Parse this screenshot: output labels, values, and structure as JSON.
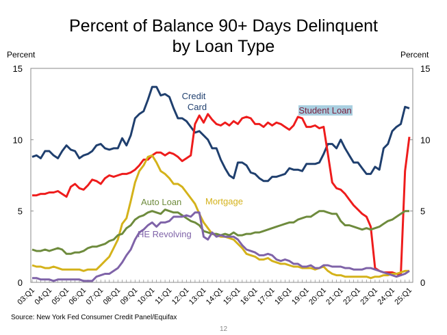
{
  "chart_data": {
    "type": "line",
    "title": "Percent of Balance 90+ Days Delinquent by Loan Type",
    "title_lines": [
      "Percent of Balance 90+ Days Delinquent",
      "by Loan Type"
    ],
    "ylabel_left": "Percent",
    "ylabel_right": "Percent",
    "ylim": [
      0,
      15
    ],
    "yticks": [
      0,
      5,
      10,
      15
    ],
    "x_start": "03:Q1",
    "x_end": "25:Q1",
    "x_frequency": "quarterly",
    "xtick_labels": [
      "03:Q1",
      "04:Q1",
      "05:Q1",
      "06:Q1",
      "07:Q1",
      "08:Q1",
      "09:Q1",
      "10:Q1",
      "11:Q1",
      "12:Q1",
      "13:Q1",
      "14:Q1",
      "15:Q1",
      "16:Q1",
      "17:Q1",
      "18:Q1",
      "19:Q1",
      "20:Q1",
      "21:Q1",
      "22:Q1",
      "23:Q1",
      "24:Q1",
      "25:Q1"
    ],
    "grid": false,
    "series": [
      {
        "name": "Credit Card",
        "label_lines": [
          "Credit",
          "Card"
        ],
        "color": "#1f3f6e",
        "values": [
          8.8,
          8.9,
          8.7,
          9.2,
          9.2,
          8.9,
          8.7,
          9.2,
          9.6,
          9.3,
          9.2,
          8.7,
          8.9,
          9.0,
          9.2,
          9.6,
          9.7,
          9.4,
          9.3,
          9.4,
          9.4,
          10.1,
          9.6,
          10.3,
          11.5,
          11.8,
          12.0,
          12.8,
          13.7,
          13.7,
          13.1,
          13.2,
          13.0,
          12.2,
          11.5,
          11.5,
          11.3,
          10.9,
          10.5,
          10.6,
          10.3,
          10.0,
          9.4,
          9.4,
          8.6,
          8.0,
          7.5,
          7.3,
          8.4,
          8.4,
          8.2,
          7.7,
          7.6,
          7.3,
          7.1,
          7.1,
          7.4,
          7.4,
          7.5,
          7.6,
          8.0,
          7.9,
          7.9,
          7.8,
          8.3,
          8.3,
          8.3,
          8.4,
          9.0,
          9.7,
          9.7,
          9.4,
          10.0,
          9.4,
          8.9,
          8.4,
          8.4,
          8.0,
          7.6,
          7.6,
          8.1,
          7.9,
          9.4,
          9.7,
          10.6,
          10.9,
          11.1,
          12.3,
          12.2
        ]
      },
      {
        "name": "Student Loan",
        "label_lines": [
          "Student Loan"
        ],
        "color": "#ee1c1c",
        "values": [
          6.1,
          6.1,
          6.2,
          6.2,
          6.3,
          6.3,
          6.4,
          6.2,
          6.0,
          6.7,
          6.9,
          6.6,
          6.5,
          6.8,
          7.2,
          7.1,
          6.9,
          7.3,
          7.5,
          7.4,
          7.5,
          7.6,
          7.6,
          7.7,
          7.9,
          8.2,
          8.6,
          8.6,
          8.9,
          9.1,
          9.1,
          8.9,
          9.1,
          9.0,
          8.8,
          8.5,
          8.7,
          8.9,
          11.1,
          11.7,
          11.2,
          11.8,
          11.4,
          11.1,
          11.0,
          11.2,
          11.0,
          11.3,
          11.1,
          11.5,
          11.6,
          11.5,
          11.1,
          11.1,
          10.9,
          11.2,
          11.0,
          11.2,
          11.1,
          10.9,
          10.7,
          11.0,
          11.6,
          11.5,
          10.9,
          10.9,
          11.0,
          10.8,
          10.9,
          9.0,
          7.0,
          6.6,
          6.5,
          6.2,
          5.8,
          5.4,
          5.1,
          4.8,
          4.6,
          3.9,
          1.0,
          0.8,
          0.7,
          0.7,
          0.7,
          0.6,
          0.5,
          7.8,
          10.2
        ]
      },
      {
        "name": "Mortgage",
        "label_lines": [
          "Mortgage"
        ],
        "color": "#d4b21a",
        "values": [
          1.2,
          1.1,
          1.1,
          1.0,
          1.0,
          1.1,
          1.0,
          0.9,
          0.9,
          0.9,
          0.9,
          0.9,
          0.8,
          0.9,
          0.9,
          0.9,
          1.2,
          1.5,
          1.8,
          2.4,
          3.0,
          4.1,
          4.5,
          5.7,
          7.0,
          7.8,
          8.2,
          8.8,
          8.9,
          8.4,
          7.8,
          7.6,
          7.3,
          6.9,
          6.9,
          6.7,
          6.3,
          5.9,
          5.5,
          4.8,
          4.2,
          3.8,
          3.4,
          3.3,
          3.2,
          3.2,
          3.1,
          3.0,
          2.7,
          2.4,
          2.0,
          1.9,
          1.8,
          1.6,
          1.6,
          1.7,
          1.5,
          1.4,
          1.3,
          1.3,
          1.2,
          1.1,
          1.1,
          1.0,
          1.0,
          1.0,
          0.9,
          1.0,
          1.1,
          0.8,
          0.6,
          0.5,
          0.5,
          0.4,
          0.4,
          0.4,
          0.4,
          0.4,
          0.4,
          0.3,
          0.4,
          0.4,
          0.5,
          0.5,
          0.6,
          0.6,
          0.7,
          0.8,
          0.8
        ]
      },
      {
        "name": "Auto Loan",
        "label_lines": [
          "Auto Loan"
        ],
        "color": "#6e8b3d",
        "values": [
          2.3,
          2.2,
          2.2,
          2.3,
          2.2,
          2.3,
          2.4,
          2.3,
          2.0,
          2.0,
          2.1,
          2.1,
          2.2,
          2.4,
          2.5,
          2.5,
          2.6,
          2.7,
          2.9,
          3.0,
          3.3,
          3.4,
          3.8,
          4.0,
          4.4,
          4.6,
          4.7,
          4.9,
          5.0,
          4.9,
          4.8,
          5.1,
          5.0,
          4.9,
          4.9,
          4.7,
          4.5,
          4.3,
          4.2,
          4.0,
          3.6,
          3.5,
          3.4,
          3.4,
          3.3,
          3.4,
          3.3,
          3.5,
          3.3,
          3.3,
          3.4,
          3.4,
          3.5,
          3.5,
          3.6,
          3.7,
          3.8,
          3.9,
          4.0,
          4.1,
          4.2,
          4.2,
          4.4,
          4.5,
          4.6,
          4.6,
          4.8,
          5.0,
          5.0,
          4.9,
          4.8,
          4.8,
          4.3,
          4.0,
          4.0,
          3.9,
          3.8,
          3.7,
          3.8,
          3.7,
          3.8,
          3.9,
          4.1,
          4.3,
          4.4,
          4.6,
          4.8,
          5.0,
          5.0
        ]
      },
      {
        "name": "HE Revolving",
        "label_lines": [
          "HE Revolving"
        ],
        "color": "#7f63a8",
        "values": [
          0.3,
          0.3,
          0.2,
          0.2,
          0.2,
          0.1,
          0.2,
          0.2,
          0.2,
          0.2,
          0.2,
          0.2,
          0.1,
          0.1,
          0.1,
          0.4,
          0.5,
          0.6,
          0.6,
          0.8,
          1.0,
          1.4,
          1.9,
          2.3,
          3.0,
          3.5,
          3.7,
          4.0,
          4.2,
          3.9,
          4.2,
          4.2,
          4.3,
          4.6,
          4.6,
          4.6,
          4.7,
          4.6,
          4.9,
          4.9,
          3.2,
          3.0,
          3.5,
          3.2,
          3.3,
          3.2,
          3.2,
          3.2,
          3.0,
          2.6,
          2.3,
          2.2,
          2.1,
          1.9,
          1.9,
          2.0,
          1.9,
          1.6,
          1.5,
          1.6,
          1.5,
          1.3,
          1.3,
          1.1,
          1.1,
          1.2,
          1.0,
          1.0,
          1.2,
          1.2,
          1.1,
          1.1,
          1.1,
          1.0,
          1.0,
          0.9,
          0.9,
          0.9,
          1.0,
          1.0,
          0.9,
          0.8,
          0.7,
          0.6,
          0.5,
          0.4,
          0.5,
          0.6,
          0.8
        ]
      }
    ],
    "student_loan_label_bg": "#a9cfe0",
    "student_loan_label_color": "#7a1f3d"
  },
  "footer": {
    "source": "Source: New York Fed Consumer Credit Panel/Equifax",
    "page_number": "12"
  }
}
